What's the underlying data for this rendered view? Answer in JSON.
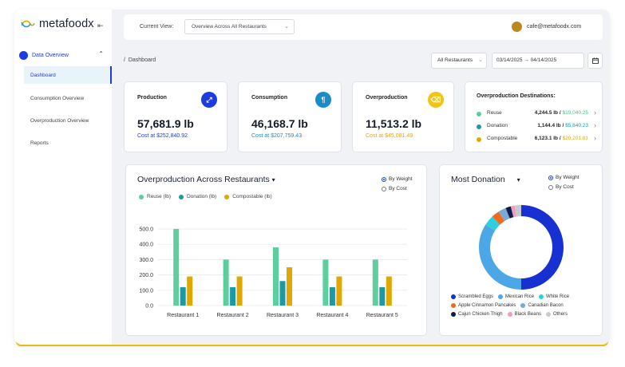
{
  "brand": {
    "name": "metafoodx"
  },
  "sidebar": {
    "group_label": "Data Overview",
    "items": [
      {
        "label": "Dashboard",
        "active": true
      },
      {
        "label": "Consumption Overview",
        "active": false
      },
      {
        "label": "Overproduction Overview",
        "active": false
      },
      {
        "label": "Reports",
        "active": false
      }
    ]
  },
  "header": {
    "current_view_label": "Current View:",
    "current_view_value": "Overview Across All Restaurants",
    "user_email": "cafe@metafoodx.com"
  },
  "breadcrumb": {
    "separator": "/",
    "current": "Dashboard"
  },
  "filters": {
    "restaurant": "All Restaurants",
    "date_start": "03/14/2025",
    "date_end": "04/14/2025"
  },
  "stats": [
    {
      "title": "Production",
      "value": "57,681.9 lb",
      "cost": "Cost at $252,840.92",
      "color": "#1d3ce0",
      "icon": "trend-icon"
    },
    {
      "title": "Consumption",
      "value": "46,168.7 lb",
      "cost": "Cost at $207,759.43",
      "color": "#1b8cc9",
      "icon": "utensils-icon"
    },
    {
      "title": "Overproduction",
      "value": "11,513.2 lb",
      "cost": "Cost at $45,081.49",
      "color": "#e0a800",
      "icon": "trash-icon"
    }
  ],
  "destinations": {
    "title": "Overproduction Destinations:",
    "rows": [
      {
        "name": "Reuse",
        "amount": "4,244.5 lb /",
        "money": "$19,040.25",
        "color": "#5ccf9c",
        "money_color": "#4cbf86"
      },
      {
        "name": "Donation",
        "amount": "1,144.4 lb /",
        "money": "$5,840.23",
        "color": "#1b9aa2",
        "money_color": "#1b9aa2"
      },
      {
        "name": "Compostable",
        "amount": "6,123.1 lb /",
        "money": "$20,201.01",
        "color": "#e0a800",
        "money_color": "#e0a800"
      }
    ]
  },
  "overproduction_chart": {
    "title": "Overproduction Across Restaurants",
    "options": [
      "By Weight",
      "By Cost"
    ],
    "selected": "By Weight"
  },
  "donation_chart": {
    "title": "Most Donation",
    "options": [
      "By Weight",
      "By Cost"
    ],
    "selected": "By Weight"
  },
  "chart_data": [
    {
      "type": "bar",
      "title": "Overproduction Across Restaurants",
      "categories": [
        "Restaurant 1",
        "Restaurant 2",
        "Restaurant 3",
        "Restaurant 4",
        "Restaurant 5"
      ],
      "series": [
        {
          "name": "Reuse (lb)",
          "values": [
            500,
            300,
            380,
            300,
            300
          ],
          "color": "#5ccf9c"
        },
        {
          "name": "Donation (lb)",
          "values": [
            120,
            120,
            160,
            120,
            120
          ],
          "color": "#1b9aa2"
        },
        {
          "name": "Compostable (lb)",
          "values": [
            190,
            190,
            250,
            190,
            190
          ],
          "color": "#e0a800"
        }
      ],
      "ylim": [
        0,
        500
      ],
      "yticks": [
        "0.0",
        "100.0",
        "200.0",
        "300.0",
        "400.0",
        "500.0"
      ],
      "grid": true,
      "legend": "top-left"
    },
    {
      "type": "pie",
      "title": "Most Donation",
      "labels": [
        "Scrambled Eggs",
        "Mexican Rice",
        "White Rice",
        "Apple Cinnamon Pancakes",
        "Canadian Bacon",
        "Cajun Chicken Thigh",
        "Black Beans",
        "Others"
      ],
      "values": [
        50,
        34,
        4,
        3,
        3,
        2,
        1.5,
        2.5
      ],
      "colors": [
        "#1730d1",
        "#4ca7e6",
        "#2ed0e0",
        "#f06a1e",
        "#7ba9d6",
        "#101c4a",
        "#f29ac0",
        "#c9c9d1"
      ],
      "legend": "bottom"
    }
  ]
}
